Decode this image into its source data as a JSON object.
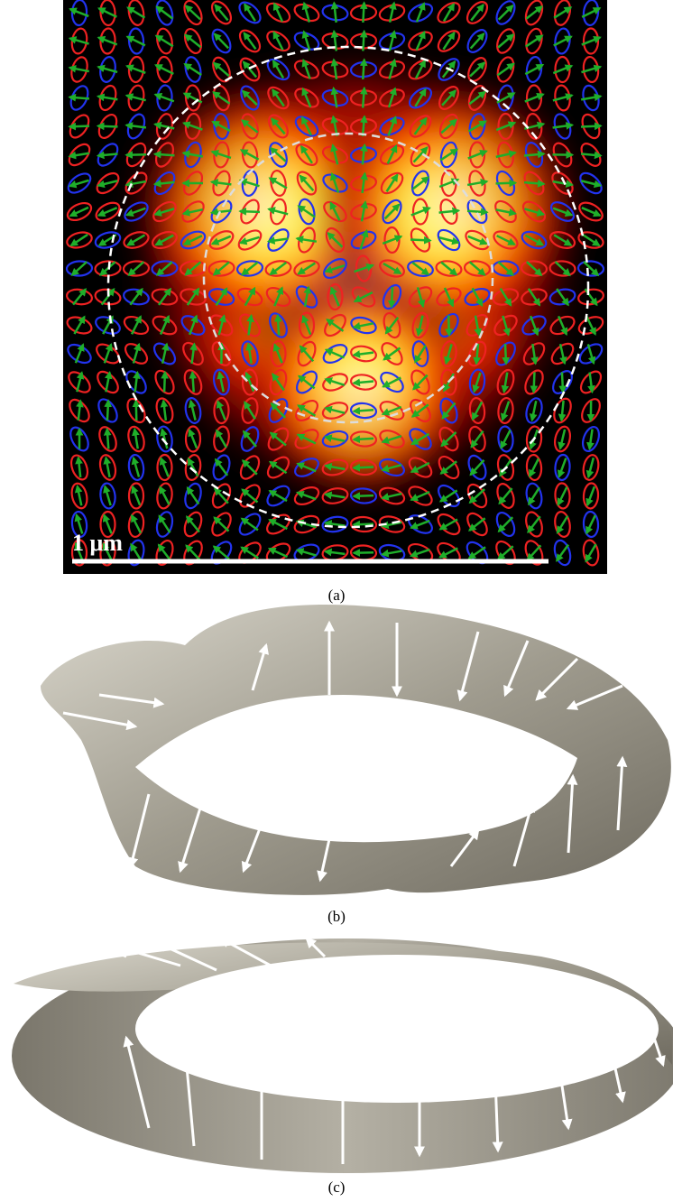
{
  "panel_a": {
    "scale_bar": "1 μm",
    "caption": "(a)"
  },
  "panel_b": {
    "caption": "(b)"
  },
  "panel_c": {
    "caption": "(c)"
  }
}
